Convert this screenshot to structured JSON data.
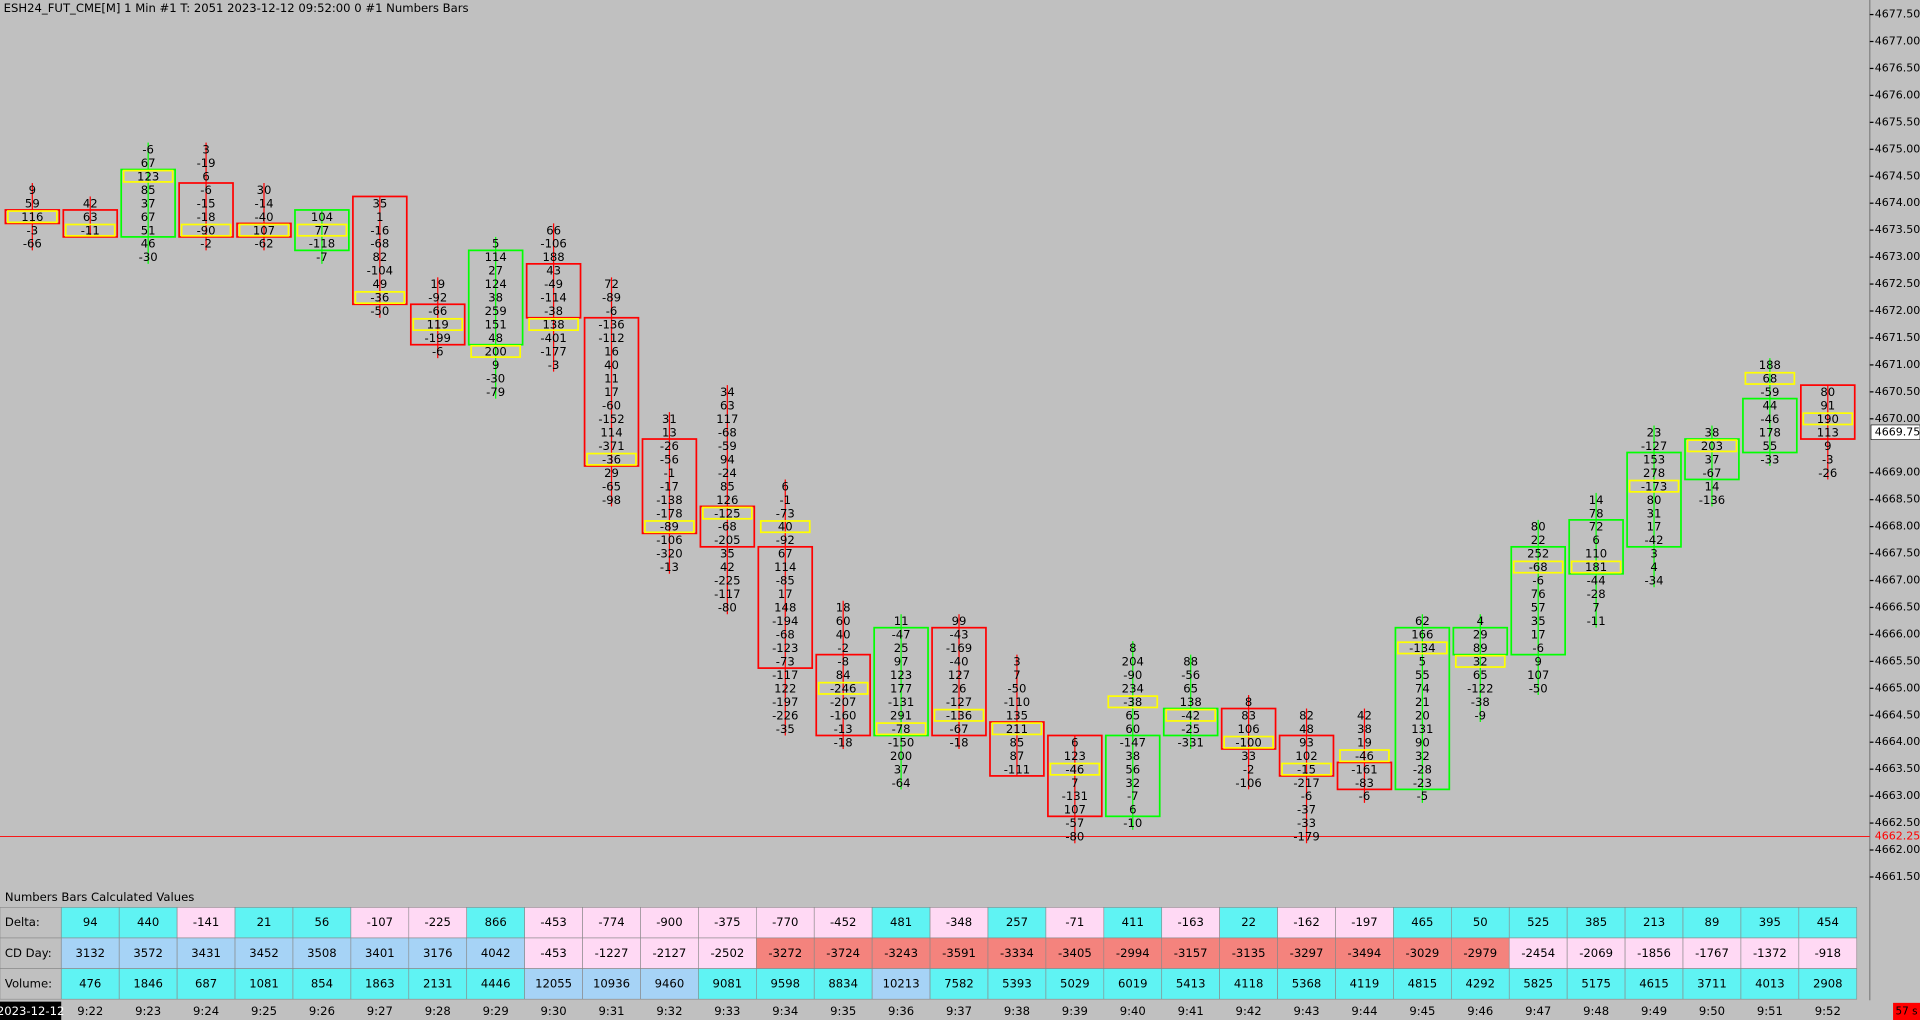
{
  "chart_data": {
    "type": "numbers-bars",
    "title": "ESH24_FUT_CME[M]  1 Min  #1 T: 2051 2023-12-12 09:52:00  0  #1 Numbers Bars",
    "date_label": "2023-12-12",
    "timer_label": "57 s",
    "ylim": [
      4661.3,
      4677.77
    ],
    "tick_size": 0.25,
    "yticks": [
      {
        "value": 4677.5,
        "label": "4677.50"
      },
      {
        "value": 4677,
        "label": "4677.00"
      },
      {
        "value": 4676.5,
        "label": "4676.50"
      },
      {
        "value": 4676,
        "label": "4676.00"
      },
      {
        "value": 4675.5,
        "label": "4675.50"
      },
      {
        "value": 4675,
        "label": "4675.00"
      },
      {
        "value": 4674.5,
        "label": "4674.50"
      },
      {
        "value": 4674,
        "label": "4674.00"
      },
      {
        "value": 4673.5,
        "label": "4673.50"
      },
      {
        "value": 4673,
        "label": "4673.00"
      },
      {
        "value": 4672.5,
        "label": "4672.50"
      },
      {
        "value": 4672,
        "label": "4672.00"
      },
      {
        "value": 4671.5,
        "label": "4671.50"
      },
      {
        "value": 4671,
        "label": "4671.00"
      },
      {
        "value": 4670.5,
        "label": "4670.50"
      },
      {
        "value": 4670,
        "label": "4670.00"
      },
      {
        "value": 4669,
        "label": "4669.00"
      },
      {
        "value": 4668.5,
        "label": "4668.50"
      },
      {
        "value": 4668,
        "label": "4668.00"
      },
      {
        "value": 4667.5,
        "label": "4667.50"
      },
      {
        "value": 4667,
        "label": "4667.00"
      },
      {
        "value": 4666.5,
        "label": "4666.50"
      },
      {
        "value": 4666,
        "label": "4666.00"
      },
      {
        "value": 4665.5,
        "label": "4665.50"
      },
      {
        "value": 4665,
        "label": "4665.00"
      },
      {
        "value": 4664.5,
        "label": "4664.50"
      },
      {
        "value": 4664,
        "label": "4664.00"
      },
      {
        "value": 4663.5,
        "label": "4663.50"
      },
      {
        "value": 4663,
        "label": "4663.00"
      },
      {
        "value": 4662.5,
        "label": "4662.50"
      },
      {
        "value": 4662,
        "label": "4662.00"
      },
      {
        "value": 4661.5,
        "label": "4661.50"
      }
    ],
    "current_price": {
      "value": 4669.75,
      "label": "4669.75"
    },
    "reference_line": {
      "value": 4662.25,
      "label": "4662.25",
      "color": "#ff0000"
    },
    "poc_color": "#ffff00",
    "bars": [
      {
        "time": null,
        "color": "#ff0000",
        "high": 4674.25,
        "open": 4673.75,
        "close": 4673.75,
        "poc": 4673.75,
        "rows": [
          9,
          59,
          116,
          -3,
          -66
        ]
      },
      {
        "time": "9:22",
        "color": "#ff0000",
        "high": 4674.0,
        "open": 4673.75,
        "close": 4673.5,
        "poc": 4673.5,
        "rows": [
          42,
          63,
          -11
        ]
      },
      {
        "time": "9:23",
        "color": "#00ff00",
        "high": 4675.0,
        "open": 4673.5,
        "close": 4674.5,
        "poc": 4674.5,
        "rows": [
          -6,
          67,
          123,
          85,
          37,
          67,
          51,
          46,
          -30
        ]
      },
      {
        "time": "9:24",
        "color": "#ff0000",
        "high": 4675.0,
        "open": 4674.25,
        "close": 4673.5,
        "poc": 4673.5,
        "rows": [
          3,
          -19,
          6,
          -6,
          -15,
          -18,
          -90,
          -2
        ]
      },
      {
        "time": "9:25",
        "color": "#ff0000",
        "high": 4674.25,
        "open": 4673.5,
        "close": 4673.5,
        "poc": 4673.5,
        "rows": [
          30,
          -14,
          -40,
          107,
          -62
        ]
      },
      {
        "time": "9:26",
        "color": "#00ff00",
        "high": 4673.75,
        "open": 4673.25,
        "close": 4673.75,
        "poc": 4673.5,
        "rows": [
          104,
          77,
          -118,
          -7
        ]
      },
      {
        "time": "9:27",
        "color": "#ff0000",
        "high": 4674.0,
        "open": 4674.0,
        "close": 4672.25,
        "poc": 4672.25,
        "rows": [
          35,
          1,
          -16,
          -68,
          82,
          -104,
          49,
          -36,
          -50
        ]
      },
      {
        "time": "9:28",
        "color": "#ff0000",
        "high": 4672.5,
        "open": 4672.0,
        "close": 4671.5,
        "poc": 4671.75,
        "rows": [
          19,
          -92,
          -66,
          119,
          -199,
          -6
        ]
      },
      {
        "time": "9:29",
        "color": "#00ff00",
        "high": 4673.25,
        "open": 4671.5,
        "close": 4673.0,
        "poc": 4671.25,
        "rows": [
          5,
          114,
          27,
          124,
          38,
          259,
          151,
          48,
          200,
          9,
          -30,
          -79
        ]
      },
      {
        "time": "9:30",
        "color": "#ff0000",
        "high": 4673.5,
        "open": 4672.75,
        "close": 4672.0,
        "poc": 4671.75,
        "rows": [
          66,
          -106,
          188,
          43,
          -49,
          -114,
          -38,
          138,
          -401,
          -177,
          -3
        ]
      },
      {
        "time": "9:31",
        "color": "#ff0000",
        "high": 4672.5,
        "open": 4671.75,
        "close": 4669.25,
        "poc": 4669.25,
        "rows": [
          72,
          -89,
          -6,
          -136,
          -112,
          16,
          40,
          11,
          17,
          -60,
          -152,
          114,
          -371,
          -36,
          29,
          -65,
          -98
        ]
      },
      {
        "time": "9:32",
        "color": "#ff0000",
        "high": 4670.0,
        "open": 4669.5,
        "close": 4668.0,
        "poc": 4668.0,
        "rows": [
          31,
          13,
          -26,
          -56,
          -1,
          -17,
          -138,
          -178,
          -89,
          -106,
          -320,
          -13
        ]
      },
      {
        "time": "9:33",
        "color": "#ff0000",
        "high": 4670.5,
        "open": 4668.25,
        "close": 4667.75,
        "poc": 4668.25,
        "rows": [
          34,
          63,
          117,
          -68,
          -59,
          94,
          -24,
          85,
          126,
          -125,
          -68,
          -205,
          35,
          42,
          -225,
          -117,
          -80
        ]
      },
      {
        "time": "9:34",
        "color": "#ff0000",
        "high": 4668.75,
        "open": 4667.5,
        "close": 4665.5,
        "poc": 4668.0,
        "rows": [
          6,
          -1,
          -73,
          40,
          -92,
          67,
          114,
          -85,
          17,
          148,
          -194,
          -68,
          -123,
          -73,
          -117,
          122,
          -197,
          -226,
          -35
        ]
      },
      {
        "time": "9:35",
        "color": "#ff0000",
        "high": 4666.5,
        "open": 4665.5,
        "close": 4664.25,
        "poc": 4665.0,
        "rows": [
          18,
          60,
          40,
          -2,
          -8,
          84,
          -246,
          -207,
          -160,
          -13,
          -18
        ]
      },
      {
        "time": "9:36",
        "color": "#00ff00",
        "high": 4666.25,
        "open": 4664.25,
        "close": 4666.0,
        "poc": 4664.25,
        "rows": [
          11,
          -47,
          25,
          97,
          123,
          177,
          -131,
          291,
          -78,
          -150,
          200,
          37,
          -64
        ]
      },
      {
        "time": "9:37",
        "color": "#ff0000",
        "high": 4666.25,
        "open": 4666.0,
        "close": 4664.25,
        "poc": 4664.5,
        "rows": [
          99,
          -43,
          -169,
          -40,
          127,
          26,
          -127,
          -136,
          -67,
          -18
        ]
      },
      {
        "time": "9:38",
        "color": "#ff0000",
        "high": 4665.5,
        "open": 4664.25,
        "close": 4663.5,
        "poc": 4664.25,
        "rows": [
          3,
          7,
          -50,
          -110,
          135,
          211,
          85,
          87,
          -111
        ]
      },
      {
        "time": "9:39",
        "color": "#ff0000",
        "high": 4664.0,
        "open": 4664.0,
        "close": 4662.75,
        "poc": 4663.5,
        "rows": [
          6,
          123,
          -46,
          7,
          -131,
          107,
          -57,
          -80
        ]
      },
      {
        "time": "9:40",
        "color": "#00ff00",
        "high": 4665.75,
        "open": 4662.75,
        "close": 4664.0,
        "poc": 4664.75,
        "rows": [
          8,
          204,
          -90,
          234,
          -38,
          65,
          60,
          -147,
          38,
          56,
          32,
          -7,
          6,
          -10
        ]
      },
      {
        "time": "9:41",
        "color": "#00ff00",
        "high": 4665.5,
        "open": 4664.25,
        "close": 4664.5,
        "poc": 4664.5,
        "rows": [
          88,
          -56,
          65,
          138,
          -42,
          -25,
          -331
        ]
      },
      {
        "time": "9:42",
        "color": "#ff0000",
        "high": 4664.75,
        "open": 4664.5,
        "close": 4664.0,
        "poc": 4664.0,
        "rows": [
          8,
          83,
          106,
          -100,
          33,
          -2,
          -106
        ]
      },
      {
        "time": "9:43",
        "color": "#ff0000",
        "high": 4664.5,
        "open": 4664.0,
        "close": 4663.5,
        "poc": 4663.5,
        "rows": [
          82,
          48,
          93,
          102,
          -15,
          -217,
          -6,
          -37,
          -33,
          -179
        ]
      },
      {
        "time": "9:44",
        "color": "#ff0000",
        "high": 4664.5,
        "open": 4663.5,
        "close": 4663.25,
        "poc": 4663.75,
        "rows": [
          42,
          38,
          19,
          -46,
          -161,
          -83,
          -6
        ]
      },
      {
        "time": "9:45",
        "color": "#00ff00",
        "high": 4666.25,
        "open": 4663.25,
        "close": 4666.0,
        "poc": 4665.75,
        "rows": [
          62,
          166,
          -134,
          5,
          55,
          74,
          21,
          20,
          131,
          90,
          32,
          -28,
          -23,
          -5
        ]
      },
      {
        "time": "9:46",
        "color": "#00ff00",
        "high": 4666.25,
        "open": 4665.75,
        "close": 4666.0,
        "poc": 4665.5,
        "rows": [
          4,
          29,
          89,
          32,
          65,
          -122,
          -38,
          -9
        ]
      },
      {
        "time": "9:47",
        "color": "#00ff00",
        "high": 4668.0,
        "open": 4665.75,
        "close": 4667.5,
        "poc": 4667.25,
        "rows": [
          80,
          22,
          252,
          -68,
          -6,
          76,
          57,
          35,
          17,
          -6,
          9,
          107,
          -50
        ]
      },
      {
        "time": "9:48",
        "color": "#00ff00",
        "high": 4668.5,
        "open": 4667.25,
        "close": 4668.0,
        "poc": 4667.25,
        "rows": [
          14,
          78,
          72,
          6,
          110,
          181,
          -44,
          -28,
          7,
          -11
        ]
      },
      {
        "time": "9:49",
        "color": "#00ff00",
        "high": 4669.75,
        "open": 4667.75,
        "close": 4669.25,
        "poc": 4668.75,
        "rows": [
          23,
          -127,
          153,
          278,
          -173,
          80,
          31,
          17,
          -42,
          3,
          4,
          -34
        ]
      },
      {
        "time": "9:50",
        "color": "#00ff00",
        "high": 4669.75,
        "open": 4669.0,
        "close": 4669.5,
        "poc": 4669.5,
        "rows": [
          38,
          203,
          37,
          -67,
          14,
          -136
        ]
      },
      {
        "time": "9:51",
        "color": "#00ff00",
        "high": 4671.0,
        "open": 4669.5,
        "close": 4670.25,
        "poc": 4670.75,
        "rows": [
          188,
          68,
          -59,
          44,
          -46,
          178,
          55,
          -33
        ]
      },
      {
        "time": "9:52",
        "color": "#ff0000",
        "high": 4670.5,
        "open": 4670.5,
        "close": 4669.75,
        "poc": 4670.0,
        "rows": [
          80,
          91,
          190,
          113,
          9,
          -3,
          -26
        ]
      }
    ],
    "table": {
      "title": "Numbers Bars Calculated Values",
      "rows": [
        {
          "label": "Delta:",
          "values": [
            94,
            440,
            -141,
            21,
            56,
            -107,
            -225,
            866,
            -453,
            -774,
            -900,
            -375,
            -770,
            -452,
            481,
            -348,
            257,
            -71,
            411,
            -163,
            22,
            -162,
            -197,
            465,
            50,
            525,
            385,
            213,
            89,
            395,
            454
          ],
          "colors": [
            "#5ff3f3",
            "#5ff3f3",
            "#ffd9f4",
            "#5ff3f3",
            "#5ff3f3",
            "#ffd9f4",
            "#ffd9f4",
            "#5ff3f3",
            "#ffd9f4",
            "#ffd9f4",
            "#ffd9f4",
            "#ffd9f4",
            "#ffd9f4",
            "#ffd9f4",
            "#5ff3f3",
            "#ffd9f4",
            "#5ff3f3",
            "#ffd9f4",
            "#5ff3f3",
            "#ffd9f4",
            "#5ff3f3",
            "#ffd9f4",
            "#ffd9f4",
            "#5ff3f3",
            "#5ff3f3",
            "#5ff3f3",
            "#5ff3f3",
            "#5ff3f3",
            "#5ff3f3",
            "#5ff3f3",
            "#5ff3f3"
          ]
        },
        {
          "label": "CD Day:",
          "values": [
            3132,
            3572,
            3431,
            3452,
            3508,
            3401,
            3176,
            4042,
            -453,
            -1227,
            -2127,
            -2502,
            -3272,
            -3724,
            -3243,
            -3591,
            -3334,
            -3405,
            -2994,
            -3157,
            -3135,
            -3297,
            -3494,
            -3029,
            -2979,
            -2454,
            -2069,
            -1856,
            -1767,
            -1372,
            -918
          ],
          "colors": [
            "#a6d3f6",
            "#a6d3f6",
            "#a6d3f6",
            "#a6d3f6",
            "#a6d3f6",
            "#a6d3f6",
            "#a6d3f6",
            "#a6d3f6",
            "#ffd9f4",
            "#ffd9f4",
            "#ffd9f4",
            "#ffd9f4",
            "#f4837d",
            "#f4837d",
            "#f4837d",
            "#f4837d",
            "#f4837d",
            "#f4837d",
            "#f4837d",
            "#f4837d",
            "#f4837d",
            "#f4837d",
            "#f4837d",
            "#f4837d",
            "#f4837d",
            "#ffd9f4",
            "#ffd9f4",
            "#ffd9f4",
            "#ffd9f4",
            "#ffd9f4",
            "#ffd9f4"
          ]
        },
        {
          "label": "Volume:",
          "values": [
            476,
            1846,
            687,
            1081,
            854,
            1863,
            2131,
            4446,
            12055,
            10936,
            9460,
            9081,
            9598,
            8834,
            10213,
            7582,
            5393,
            5029,
            6019,
            5413,
            4118,
            5368,
            4119,
            4815,
            4292,
            5825,
            5175,
            4615,
            3711,
            4013,
            2908
          ],
          "colors": [
            "#5ff3f3",
            "#5ff3f3",
            "#5ff3f3",
            "#5ff3f3",
            "#5ff3f3",
            "#5ff3f3",
            "#5ff3f3",
            "#5ff3f3",
            "#a6d3f6",
            "#a6d3f6",
            "#a6d3f6",
            "#5ff3f3",
            "#5ff3f3",
            "#5ff3f3",
            "#a6d3f6",
            "#5ff3f3",
            "#5ff3f3",
            "#5ff3f3",
            "#5ff3f3",
            "#5ff3f3",
            "#5ff3f3",
            "#5ff3f3",
            "#5ff3f3",
            "#5ff3f3",
            "#5ff3f3",
            "#5ff3f3",
            "#5ff3f3",
            "#5ff3f3",
            "#5ff3f3",
            "#5ff3f3",
            "#5ff3f3"
          ]
        }
      ]
    }
  }
}
